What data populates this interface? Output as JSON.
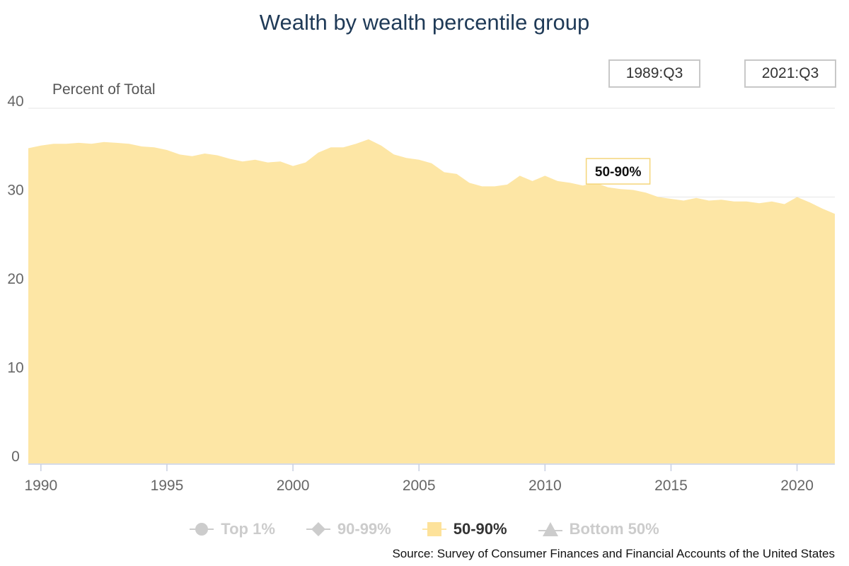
{
  "title": "Wealth by wealth percentile group",
  "range": {
    "start": "1989:Q3",
    "end": "2021:Q3"
  },
  "legend": [
    {
      "label": "Top 1%",
      "symbol": "circle",
      "active": false
    },
    {
      "label": "90-99%",
      "symbol": "diamond",
      "active": false
    },
    {
      "label": "50-90%",
      "symbol": "square",
      "active": true
    },
    {
      "label": "Bottom 50%",
      "symbol": "triangle",
      "active": false
    }
  ],
  "source": "Source: Survey of Consumer Finances and Financial Accounts of the United States",
  "colors": {
    "fill": "#fde6a5",
    "title": "#1f3a57",
    "grid": "#e6e6e6",
    "inactive": "#cccccc",
    "label_border": "#f5d57a"
  },
  "chart_data": {
    "type": "area",
    "ylabel": "Percent of Total",
    "ylim": [
      0,
      40
    ],
    "yticks": [
      0,
      10,
      20,
      30,
      40
    ],
    "xlim": [
      1989.5,
      2021.5
    ],
    "xticks": [
      1990,
      1995,
      2000,
      2005,
      2010,
      2015,
      2020
    ],
    "grid": true,
    "series_label": "50-90%",
    "series": [
      {
        "name": "50-90%",
        "x": [
          1989.5,
          1990.0,
          1990.5,
          1991.0,
          1991.5,
          1992.0,
          1992.5,
          1993.0,
          1993.5,
          1994.0,
          1994.5,
          1995.0,
          1995.5,
          1996.0,
          1996.5,
          1997.0,
          1997.5,
          1998.0,
          1998.5,
          1999.0,
          1999.5,
          2000.0,
          2000.5,
          2001.0,
          2001.5,
          2002.0,
          2002.5,
          2003.0,
          2003.5,
          2004.0,
          2004.5,
          2005.0,
          2005.5,
          2006.0,
          2006.5,
          2007.0,
          2007.5,
          2008.0,
          2008.5,
          2009.0,
          2009.5,
          2010.0,
          2010.5,
          2011.0,
          2011.5,
          2012.0,
          2012.5,
          2013.0,
          2013.5,
          2014.0,
          2014.5,
          2015.0,
          2015.5,
          2016.0,
          2016.5,
          2017.0,
          2017.5,
          2018.0,
          2018.5,
          2019.0,
          2019.5,
          2020.0,
          2020.5,
          2021.0,
          2021.5
        ],
        "y": [
          35.5,
          35.8,
          36.0,
          36.0,
          36.1,
          36.0,
          36.2,
          36.1,
          36.0,
          35.7,
          35.6,
          35.3,
          34.8,
          34.6,
          34.9,
          34.7,
          34.3,
          34.0,
          34.2,
          33.9,
          34.0,
          33.5,
          33.9,
          35.0,
          35.6,
          35.6,
          36.0,
          36.5,
          35.8,
          34.8,
          34.4,
          34.2,
          33.8,
          32.8,
          32.6,
          31.6,
          31.2,
          31.2,
          31.4,
          32.4,
          31.8,
          32.4,
          31.8,
          31.6,
          31.3,
          31.6,
          31.1,
          30.9,
          30.8,
          30.5,
          30.0,
          29.8,
          29.6,
          29.9,
          29.6,
          29.7,
          29.5,
          29.5,
          29.3,
          29.5,
          29.2,
          30.0,
          29.4,
          28.7,
          28.1
        ]
      }
    ]
  }
}
